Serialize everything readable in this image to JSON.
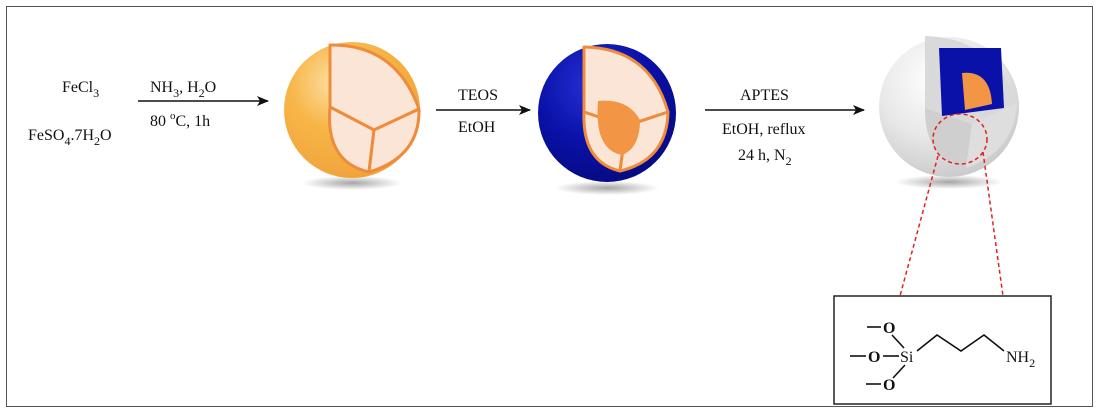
{
  "reagents": {
    "fecl3": {
      "base": "FeCl",
      "sub": "3"
    },
    "feso4": {
      "a": "FeSO",
      "sub1": "4",
      "b": ".7H",
      "sub2": "2",
      "c": "O"
    }
  },
  "step1": {
    "line1": {
      "a": "NH",
      "sub1": "3",
      "b": ", H",
      "sub2": "2",
      "c": "O"
    },
    "line2": {
      "a": "80 ",
      "sup": "o",
      "b": "C, 1h"
    }
  },
  "step2": {
    "line1": "TEOS",
    "line2": "EtOH"
  },
  "step3": {
    "line1": "APTES",
    "line2": "EtOH, reflux",
    "line3": {
      "a": "24 h, N",
      "sub": "2"
    }
  },
  "molecule": {
    "o_top": "O",
    "o_mid": "O",
    "o_bot": "O",
    "si": "Si",
    "amine": {
      "a": "NH",
      "sub": "2"
    }
  },
  "colors": {
    "magnetite_core": "#f29645",
    "magnetite_surface": "#f7b648",
    "cut_face": "#fbe5d6",
    "cut_edge": "#ef8c3c",
    "silica_shell": "#0a11a8",
    "aptes_shell": "#e4e4e4",
    "zoom_lines": "#e02020"
  }
}
